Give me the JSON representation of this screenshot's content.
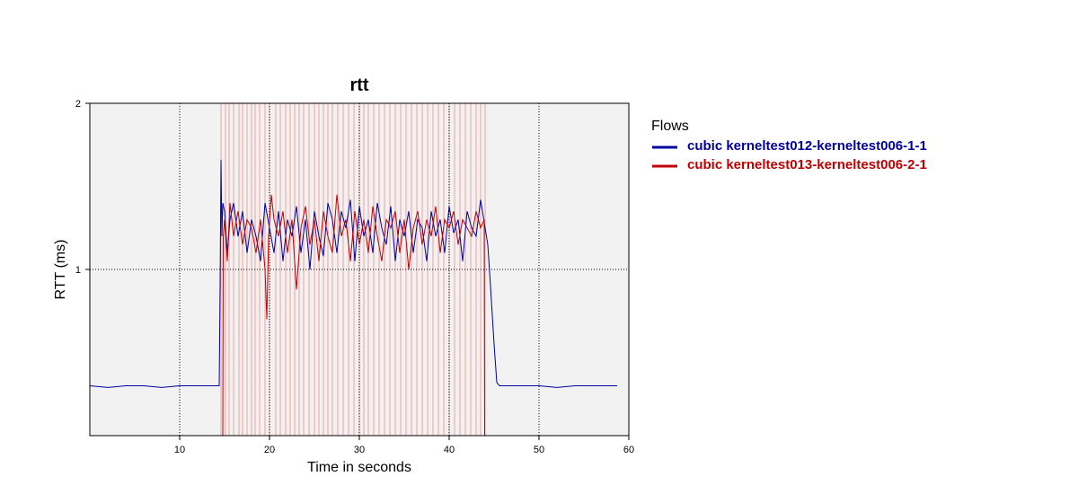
{
  "chart_data": {
    "type": "line",
    "title": "rtt",
    "xlabel": "Time in seconds",
    "ylabel": "RTT (ms)",
    "xlim": [
      0,
      60
    ],
    "ylim": [
      0,
      2
    ],
    "x_ticks": [
      10,
      20,
      30,
      40,
      50,
      60
    ],
    "y_ticks": [
      1,
      2
    ],
    "grid": true,
    "legend": {
      "title": "Flows",
      "placement": "right"
    },
    "series": [
      {
        "name": "cubic kerneltest012-kerneltest006-1-1",
        "color": "#0000a0",
        "x": [
          0,
          2,
          4,
          6,
          8,
          10,
          12,
          14,
          14.4,
          14.5,
          14.6,
          14.7,
          14.8,
          15.0,
          15.3,
          15.6,
          16.0,
          16.5,
          17.0,
          17.5,
          18.0,
          18.5,
          19.0,
          19.5,
          20.0,
          20.5,
          21.0,
          21.5,
          22.0,
          22.5,
          23.0,
          23.5,
          24.0,
          24.5,
          25.0,
          25.5,
          26.0,
          26.5,
          27.0,
          27.5,
          28.0,
          28.5,
          29.0,
          29.5,
          30.0,
          30.5,
          31.0,
          31.5,
          32.0,
          32.5,
          33.0,
          33.5,
          34.0,
          34.5,
          35.0,
          35.5,
          36.0,
          36.5,
          37.0,
          37.5,
          38.0,
          38.5,
          39.0,
          39.5,
          40.0,
          40.5,
          41.0,
          41.5,
          42.0,
          42.5,
          43.0,
          43.5,
          44.0,
          44.3,
          44.6,
          45.0,
          45.3,
          45.6,
          46.0,
          48,
          50,
          52,
          54,
          56,
          58.7
        ],
        "y": [
          0.3,
          0.29,
          0.3,
          0.3,
          0.29,
          0.3,
          0.3,
          0.3,
          0.3,
          0.9,
          1.66,
          1.2,
          1.4,
          1.35,
          1.1,
          1.3,
          1.4,
          1.2,
          1.35,
          1.1,
          1.3,
          1.2,
          1.05,
          1.4,
          1.25,
          1.1,
          1.35,
          1.05,
          1.3,
          1.2,
          1.38,
          1.1,
          1.3,
          1.0,
          1.35,
          1.2,
          1.08,
          1.4,
          1.3,
          1.1,
          1.35,
          1.25,
          1.42,
          1.05,
          1.38,
          1.2,
          1.3,
          1.1,
          1.4,
          1.25,
          1.15,
          1.38,
          1.05,
          1.3,
          1.2,
          1.35,
          1.1,
          1.3,
          1.25,
          1.05,
          1.35,
          1.2,
          1.3,
          1.1,
          1.38,
          1.22,
          1.3,
          1.05,
          1.35,
          1.25,
          1.2,
          1.42,
          1.25,
          1.15,
          0.9,
          0.55,
          0.32,
          0.3,
          0.3,
          0.3,
          0.3,
          0.29,
          0.3,
          0.3,
          0.3
        ]
      },
      {
        "name": "cubic kerneltest013-kerneltest006-2-1",
        "color": "#c00000",
        "x": [
          0,
          14.5,
          14.8,
          14.85,
          15.0,
          15.3,
          15.6,
          16.0,
          16.5,
          17.0,
          17.5,
          18.0,
          18.5,
          19.0,
          19.5,
          19.7,
          19.9,
          20.2,
          20.5,
          21.0,
          21.5,
          22.0,
          22.5,
          23.0,
          23.5,
          24.0,
          24.5,
          25.0,
          25.5,
          26.0,
          26.5,
          27.0,
          27.5,
          28.0,
          28.5,
          29.0,
          29.5,
          30.0,
          30.5,
          31.0,
          31.5,
          32.0,
          32.5,
          33.0,
          33.5,
          34.0,
          34.5,
          35.0,
          35.5,
          36.0,
          36.5,
          37.0,
          37.5,
          38.0,
          38.5,
          39.0,
          39.5,
          40.0,
          40.5,
          41.0,
          41.5,
          42.0,
          42.5,
          43.0,
          43.5,
          43.9,
          43.95,
          44.0,
          60
        ],
        "y": [
          0,
          0,
          0,
          1.2,
          1.3,
          1.05,
          1.4,
          1.2,
          1.35,
          1.15,
          1.3,
          1.25,
          1.1,
          1.3,
          1.0,
          0.7,
          1.2,
          1.45,
          1.3,
          1.2,
          1.35,
          1.1,
          1.3,
          0.88,
          1.25,
          1.38,
          1.15,
          1.3,
          1.05,
          1.35,
          1.2,
          1.1,
          1.45,
          1.2,
          1.3,
          1.05,
          1.35,
          1.15,
          1.3,
          1.1,
          1.38,
          1.2,
          1.05,
          1.3,
          1.25,
          1.35,
          1.1,
          1.3,
          1.0,
          1.25,
          1.35,
          1.15,
          1.3,
          1.2,
          1.38,
          1.1,
          1.3,
          1.25,
          1.35,
          1.15,
          1.3,
          1.25,
          1.2,
          1.35,
          1.25,
          1.3,
          0.0,
          0,
          0
        ]
      }
    ],
    "loss_events": {
      "color": "#f2a0a0",
      "x": [
        14.6,
        15.1,
        15.5,
        16.0,
        16.6,
        17.0,
        17.5,
        18.0,
        18.4,
        18.9,
        19.5,
        20.0,
        20.7,
        21.2,
        21.8,
        22.3,
        22.8,
        23.3,
        23.8,
        24.4,
        25.0,
        25.5,
        26.0,
        26.5,
        27.0,
        27.6,
        28.2,
        28.8,
        29.4,
        30.0,
        30.5,
        31.0,
        31.6,
        32.2,
        32.8,
        33.4,
        34.0,
        34.6,
        35.2,
        35.8,
        36.4,
        37.0,
        37.6,
        38.2,
        38.8,
        39.4,
        40.0,
        40.6,
        41.2,
        41.8,
        42.4,
        43.0,
        43.5,
        44.0
      ]
    }
  }
}
